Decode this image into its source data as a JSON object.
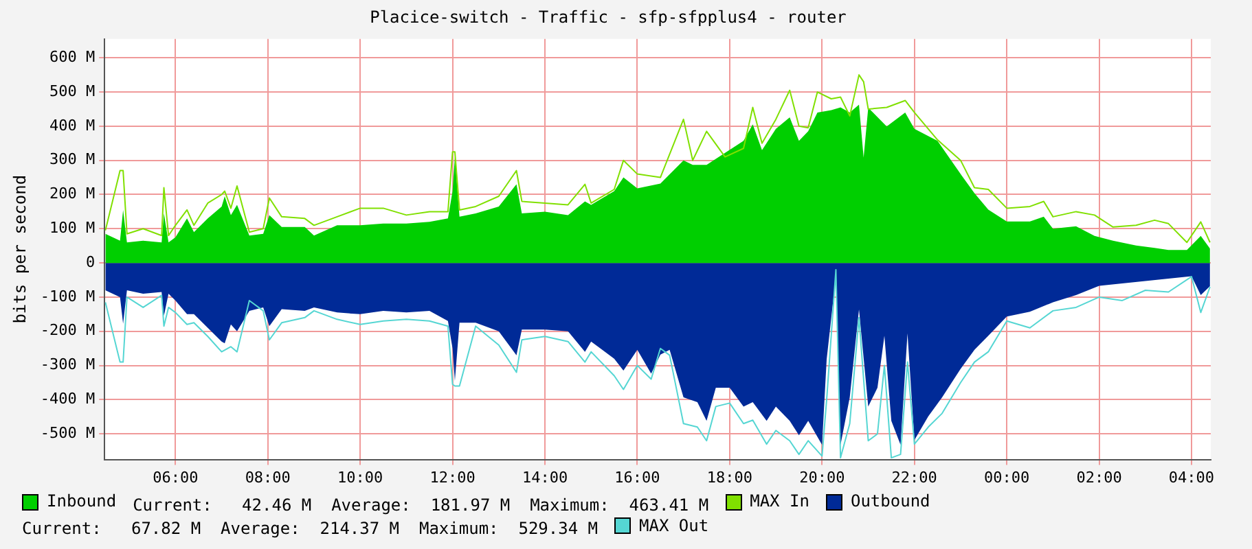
{
  "chart_data": {
    "type": "area",
    "title": "Placice-switch - Traffic - sfp-sfpplus4 - router",
    "ylabel": "bits per second",
    "xlim": [
      "--01-01T04:28",
      "--01-02T04:25"
    ],
    "xticks": [
      {
        "value": "--01-01T06:00",
        "label": "06:00"
      },
      {
        "value": "--01-01T08:00",
        "label": "08:00"
      },
      {
        "value": "--01-01T10:00",
        "label": "10:00"
      },
      {
        "value": "--01-01T12:00",
        "label": "12:00"
      },
      {
        "value": "--01-01T14:00",
        "label": "14:00"
      },
      {
        "value": "--01-01T16:00",
        "label": "16:00"
      },
      {
        "value": "--01-01T18:00",
        "label": "18:00"
      },
      {
        "value": "--01-01T20:00",
        "label": "20:00"
      },
      {
        "value": "--01-01T22:00",
        "label": "22:00"
      },
      {
        "value": "--01-02T00:00",
        "label": "00:00"
      },
      {
        "value": "--01-02T02:00",
        "label": "02:00"
      },
      {
        "value": "--01-02T04:00",
        "label": "04:00"
      }
    ],
    "ylim": [
      -575,
      655
    ],
    "yticks": [
      {
        "value": -500,
        "label": "-500 M"
      },
      {
        "value": -400,
        "label": "-400 M"
      },
      {
        "value": -300,
        "label": "-300 M"
      },
      {
        "value": -200,
        "label": "-200 M"
      },
      {
        "value": -100,
        "label": "-100 M"
      },
      0,
      {
        "value": 100,
        "label": "100 M"
      },
      {
        "value": 200,
        "label": "200 M"
      },
      {
        "value": 300,
        "label": "300 M"
      },
      {
        "value": 400,
        "label": "400 M"
      },
      {
        "value": 500,
        "label": "500 M"
      },
      {
        "value": 600,
        "label": "600 M"
      }
    ],
    "grid": true,
    "legend": "bottom",
    "marker": "none",
    "annotations": [
      "Current:   42.46 M  Average:  181.97 M  Maximum:  463.41 M",
      "Current:   67.82 M  Average:  214.37 M  Maximum:  529.34 M"
    ],
    "series": [
      {
        "name": "Inbound",
        "type": "area",
        "color": "#00cf00",
        "x": [
          "--01-01T04:29",
          "--01-01T04:48",
          "--01-01T04:52",
          "--01-01T04:57",
          "--01-01T05:18",
          "--01-01T05:42",
          "--01-01T05:45",
          "--01-01T05:51",
          "--01-01T06:00",
          "--01-01T06:15",
          "--01-01T06:24",
          "--01-01T06:42",
          "--01-01T07:00",
          "--01-01T07:04",
          "--01-01T07:12",
          "--01-01T07:20",
          "--01-01T07:36",
          "--01-01T07:54",
          "--01-01T08:02",
          "--01-01T08:18",
          "--01-01T08:48",
          "--01-01T09:00",
          "--01-01T09:30",
          "--01-01T10:00",
          "--01-01T10:30",
          "--01-01T11:00",
          "--01-01T11:30",
          "--01-01T11:54",
          "--01-01T12:00",
          "--01-01T12:03",
          "--01-01T12:09",
          "--01-01T12:30",
          "--01-01T13:00",
          "--01-01T13:23",
          "--01-01T13:30",
          "--01-01T14:00",
          "--01-01T14:30",
          "--01-01T14:52",
          "--01-01T15:00",
          "--01-01T15:30",
          "--01-01T15:42",
          "--01-01T16:00",
          "--01-01T16:30",
          "--01-01T17:00",
          "--01-01T17:12",
          "--01-01T17:30",
          "--01-01T17:54",
          "--01-01T18:18",
          "--01-01T18:30",
          "--01-01T18:42",
          "--01-01T19:00",
          "--01-01T19:18",
          "--01-01T19:30",
          "--01-01T19:42",
          "--01-01T19:54",
          "--01-01T20:12",
          "--01-01T20:24",
          "--01-01T20:36",
          "--01-01T20:48",
          "--01-01T20:54",
          "--01-01T21:00",
          "--01-01T21:24",
          "--01-01T21:48",
          "--01-01T22:00",
          "--01-01T22:30",
          "--01-01T23:00",
          "--01-01T23:18",
          "--01-01T23:36",
          "--01-02T00:00",
          "--01-02T00:30",
          "--01-02T00:48",
          "--01-02T01:00",
          "--01-02T01:30",
          "--01-02T01:54",
          "--01-02T02:18",
          "--01-02T02:48",
          "--01-02T03:12",
          "--01-02T03:30",
          "--01-02T03:54",
          "--01-02T04:12",
          "--01-02T04:24"
        ],
        "values": [
          85,
          65,
          155,
          60,
          65,
          60,
          145,
          60,
          75,
          130,
          90,
          130,
          165,
          195,
          140,
          170,
          80,
          85,
          140,
          105,
          105,
          80,
          110,
          110,
          115,
          115,
          120,
          130,
          210,
          310,
          135,
          145,
          165,
          230,
          145,
          150,
          140,
          180,
          170,
          210,
          250,
          218,
          232,
          300,
          287,
          287,
          322,
          357,
          405,
          330,
          392,
          426,
          357,
          385,
          440,
          447,
          455,
          440,
          463,
          308,
          454,
          399,
          440,
          392,
          357,
          260,
          204,
          156,
          121,
          121,
          135,
          100,
          107,
          79,
          65,
          51,
          44,
          38,
          38,
          79,
          42
        ]
      },
      {
        "name": "MAX In",
        "type": "line",
        "color": "#80e000",
        "x": [
          "--01-01T04:29",
          "--01-01T04:48",
          "--01-01T04:52",
          "--01-01T04:57",
          "--01-01T05:18",
          "--01-01T05:42",
          "--01-01T05:45",
          "--01-01T05:51",
          "--01-01T06:00",
          "--01-01T06:15",
          "--01-01T06:24",
          "--01-01T06:42",
          "--01-01T07:00",
          "--01-01T07:04",
          "--01-01T07:12",
          "--01-01T07:20",
          "--01-01T07:36",
          "--01-01T07:54",
          "--01-01T08:02",
          "--01-01T08:18",
          "--01-01T08:48",
          "--01-01T09:00",
          "--01-01T09:30",
          "--01-01T10:00",
          "--01-01T10:30",
          "--01-01T11:00",
          "--01-01T11:30",
          "--01-01T11:54",
          "--01-01T12:00",
          "--01-01T12:03",
          "--01-01T12:09",
          "--01-01T12:30",
          "--01-01T13:00",
          "--01-01T13:23",
          "--01-01T13:30",
          "--01-01T14:00",
          "--01-01T14:30",
          "--01-01T14:52",
          "--01-01T15:00",
          "--01-01T15:30",
          "--01-01T15:42",
          "--01-01T16:00",
          "--01-01T16:30",
          "--01-01T17:00",
          "--01-01T17:12",
          "--01-01T17:30",
          "--01-01T17:54",
          "--01-01T18:18",
          "--01-01T18:30",
          "--01-01T18:42",
          "--01-01T19:00",
          "--01-01T19:18",
          "--01-01T19:30",
          "--01-01T19:42",
          "--01-01T19:54",
          "--01-01T20:12",
          "--01-01T20:24",
          "--01-01T20:36",
          "--01-01T20:48",
          "--01-01T20:54",
          "--01-01T21:00",
          "--01-01T21:24",
          "--01-01T21:48",
          "--01-01T22:00",
          "--01-01T22:30",
          "--01-01T23:00",
          "--01-01T23:18",
          "--01-01T23:36",
          "--01-02T00:00",
          "--01-02T00:30",
          "--01-02T00:48",
          "--01-02T01:00",
          "--01-02T01:30",
          "--01-02T01:54",
          "--01-02T02:18",
          "--01-02T02:48",
          "--01-02T03:12",
          "--01-02T03:30",
          "--01-02T03:54",
          "--01-02T04:12",
          "--01-02T04:24"
        ],
        "values": [
          95,
          270,
          270,
          85,
          100,
          80,
          220,
          80,
          110,
          155,
          110,
          175,
          200,
          210,
          160,
          225,
          90,
          100,
          190,
          135,
          130,
          110,
          135,
          160,
          160,
          140,
          150,
          150,
          325,
          325,
          155,
          165,
          195,
          270,
          180,
          175,
          170,
          230,
          175,
          215,
          300,
          260,
          250,
          420,
          300,
          385,
          310,
          335,
          455,
          350,
          420,
          505,
          400,
          395,
          500,
          480,
          485,
          430,
          550,
          530,
          450,
          455,
          475,
          440,
          360,
          300,
          220,
          215,
          160,
          165,
          180,
          135,
          150,
          140,
          105,
          110,
          125,
          115,
          60,
          120,
          60
        ]
      },
      {
        "name": "Outbound",
        "type": "area",
        "color": "#002a97",
        "x": [
          "--01-01T04:29",
          "--01-01T04:48",
          "--01-01T04:52",
          "--01-01T04:57",
          "--01-01T05:18",
          "--01-01T05:42",
          "--01-01T05:45",
          "--01-01T05:51",
          "--01-01T06:00",
          "--01-01T06:15",
          "--01-01T06:24",
          "--01-01T06:42",
          "--01-01T07:00",
          "--01-01T07:04",
          "--01-01T07:12",
          "--01-01T07:20",
          "--01-01T07:36",
          "--01-01T07:54",
          "--01-01T08:02",
          "--01-01T08:18",
          "--01-01T08:48",
          "--01-01T09:00",
          "--01-01T09:30",
          "--01-01T10:00",
          "--01-01T10:30",
          "--01-01T11:00",
          "--01-01T11:30",
          "--01-01T11:54",
          "--01-01T12:00",
          "--01-01T12:03",
          "--01-01T12:09",
          "--01-01T12:30",
          "--01-01T13:00",
          "--01-01T13:23",
          "--01-01T13:30",
          "--01-01T14:00",
          "--01-01T14:30",
          "--01-01T14:52",
          "--01-01T15:00",
          "--01-01T15:30",
          "--01-01T15:42",
          "--01-01T16:00",
          "--01-01T16:18",
          "--01-01T16:30",
          "--01-01T16:42",
          "--01-01T17:00",
          "--01-01T17:18",
          "--01-01T17:30",
          "--01-01T17:42",
          "--01-01T18:00",
          "--01-01T18:18",
          "--01-01T18:30",
          "--01-01T18:48",
          "--01-01T19:00",
          "--01-01T19:18",
          "--01-01T19:30",
          "--01-01T19:42",
          "--01-01T20:00",
          "--01-01T20:06",
          "--01-01T20:18",
          "--01-01T20:24",
          "--01-01T20:36",
          "--01-01T20:48",
          "--01-01T21:00",
          "--01-01T21:12",
          "--01-01T21:21",
          "--01-01T21:30",
          "--01-01T21:42",
          "--01-01T21:51",
          "--01-01T22:00",
          "--01-01T22:18",
          "--01-01T22:36",
          "--01-01T23:00",
          "--01-01T23:18",
          "--01-01T23:36",
          "--01-02T00:00",
          "--01-02T00:30",
          "--01-02T01:00",
          "--01-02T01:30",
          "--01-02T02:00",
          "--01-02T02:30",
          "--01-02T03:00",
          "--01-02T03:30",
          "--01-02T04:00",
          "--01-02T04:12",
          "--01-02T04:24"
        ],
        "values": [
          -80,
          -100,
          -178,
          -80,
          -90,
          -85,
          -155,
          -90,
          -110,
          -150,
          -150,
          -190,
          -230,
          -235,
          -180,
          -200,
          -140,
          -130,
          -185,
          -135,
          -140,
          -130,
          -145,
          -150,
          -140,
          -145,
          -140,
          -170,
          -250,
          -345,
          -175,
          -175,
          -200,
          -270,
          -195,
          -195,
          -200,
          -260,
          -230,
          -280,
          -315,
          -254,
          -324,
          -268,
          -254,
          -393,
          -407,
          -462,
          -365,
          -365,
          -420,
          -407,
          -462,
          -420,
          -462,
          -504,
          -462,
          -532,
          -282,
          -39,
          -532,
          -393,
          -136,
          -420,
          -365,
          -213,
          -462,
          -532,
          -206,
          -518,
          -449,
          -393,
          -310,
          -254,
          -213,
          -157,
          -143,
          -115,
          -94,
          -67,
          -60,
          -53,
          -46,
          -39,
          -94,
          -68
        ]
      },
      {
        "name": "MAX Out",
        "type": "line",
        "color": "#55d6d3",
        "x": [
          "--01-01T04:29",
          "--01-01T04:48",
          "--01-01T04:52",
          "--01-01T04:57",
          "--01-01T05:18",
          "--01-01T05:42",
          "--01-01T05:45",
          "--01-01T05:51",
          "--01-01T06:00",
          "--01-01T06:15",
          "--01-01T06:24",
          "--01-01T06:42",
          "--01-01T07:00",
          "--01-01T07:04",
          "--01-01T07:12",
          "--01-01T07:20",
          "--01-01T07:36",
          "--01-01T07:54",
          "--01-01T08:02",
          "--01-01T08:18",
          "--01-01T08:48",
          "--01-01T09:00",
          "--01-01T09:30",
          "--01-01T10:00",
          "--01-01T10:30",
          "--01-01T11:00",
          "--01-01T11:30",
          "--01-01T11:54",
          "--01-01T12:00",
          "--01-01T12:03",
          "--01-01T12:09",
          "--01-01T12:30",
          "--01-01T13:00",
          "--01-01T13:23",
          "--01-01T13:30",
          "--01-01T14:00",
          "--01-01T14:30",
          "--01-01T14:52",
          "--01-01T15:00",
          "--01-01T15:30",
          "--01-01T15:42",
          "--01-01T16:00",
          "--01-01T16:18",
          "--01-01T16:30",
          "--01-01T16:42",
          "--01-01T17:00",
          "--01-01T17:18",
          "--01-01T17:30",
          "--01-01T17:42",
          "--01-01T18:00",
          "--01-01T18:18",
          "--01-01T18:30",
          "--01-01T18:48",
          "--01-01T19:00",
          "--01-01T19:18",
          "--01-01T19:30",
          "--01-01T19:42",
          "--01-01T20:00",
          "--01-01T20:06",
          "--01-01T20:18",
          "--01-01T20:24",
          "--01-01T20:36",
          "--01-01T20:48",
          "--01-01T21:00",
          "--01-01T21:12",
          "--01-01T21:21",
          "--01-01T21:30",
          "--01-01T21:42",
          "--01-01T21:51",
          "--01-01T22:00",
          "--01-01T22:18",
          "--01-01T22:36",
          "--01-01T23:00",
          "--01-01T23:18",
          "--01-01T23:36",
          "--01-02T00:00",
          "--01-02T00:30",
          "--01-02T01:00",
          "--01-02T01:30",
          "--01-02T02:00",
          "--01-02T02:30",
          "--01-02T03:00",
          "--01-02T03:30",
          "--01-02T04:00",
          "--01-02T04:12",
          "--01-02T04:24"
        ],
        "values": [
          -115,
          -290,
          -290,
          -100,
          -130,
          -95,
          -185,
          -130,
          -145,
          -180,
          -175,
          -215,
          -260,
          -255,
          -245,
          -260,
          -110,
          -140,
          -225,
          -175,
          -160,
          -140,
          -165,
          -180,
          -170,
          -165,
          -170,
          -185,
          -355,
          -360,
          -360,
          -185,
          -240,
          -320,
          -225,
          -215,
          -230,
          -290,
          -260,
          -330,
          -370,
          -300,
          -340,
          -250,
          -270,
          -470,
          -480,
          -520,
          -420,
          -410,
          -470,
          -460,
          -530,
          -490,
          -520,
          -560,
          -520,
          -565,
          -400,
          -20,
          -570,
          -470,
          -160,
          -520,
          -500,
          -300,
          -570,
          -560,
          -290,
          -530,
          -480,
          -440,
          -350,
          -290,
          -260,
          -170,
          -190,
          -140,
          -130,
          -100,
          -110,
          -80,
          -85,
          -40,
          -145,
          -70
        ]
      }
    ]
  }
}
